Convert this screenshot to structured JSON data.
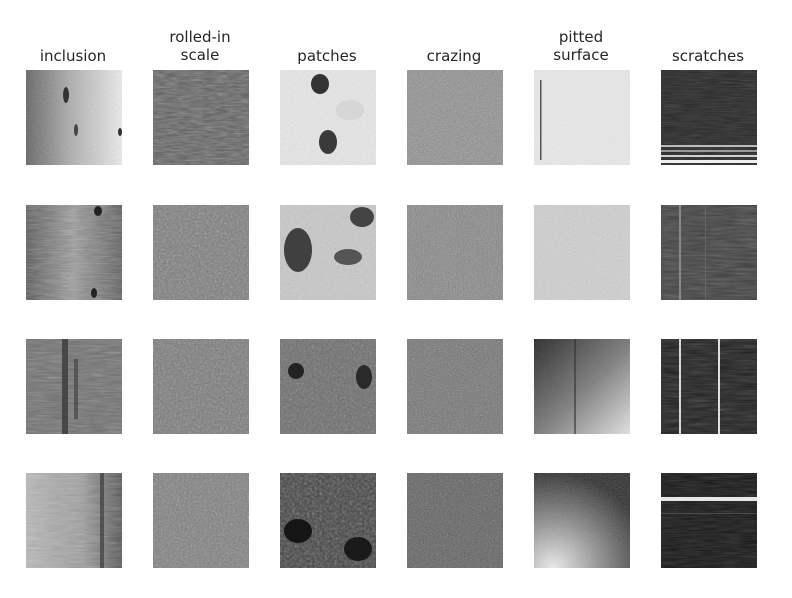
{
  "figure": {
    "columns": [
      {
        "title": "inclusion",
        "id": "inclusion"
      },
      {
        "title": "rolled-in\nscale",
        "id": "rolled-in-scale"
      },
      {
        "title": "patches",
        "id": "patches"
      },
      {
        "title": "crazing",
        "id": "crazing"
      },
      {
        "title": "pitted\nsurface",
        "id": "pitted-surface"
      },
      {
        "title": "scratches",
        "id": "scratches"
      }
    ],
    "rows": 4,
    "image_style": "grayscale steel surface defect samples"
  }
}
